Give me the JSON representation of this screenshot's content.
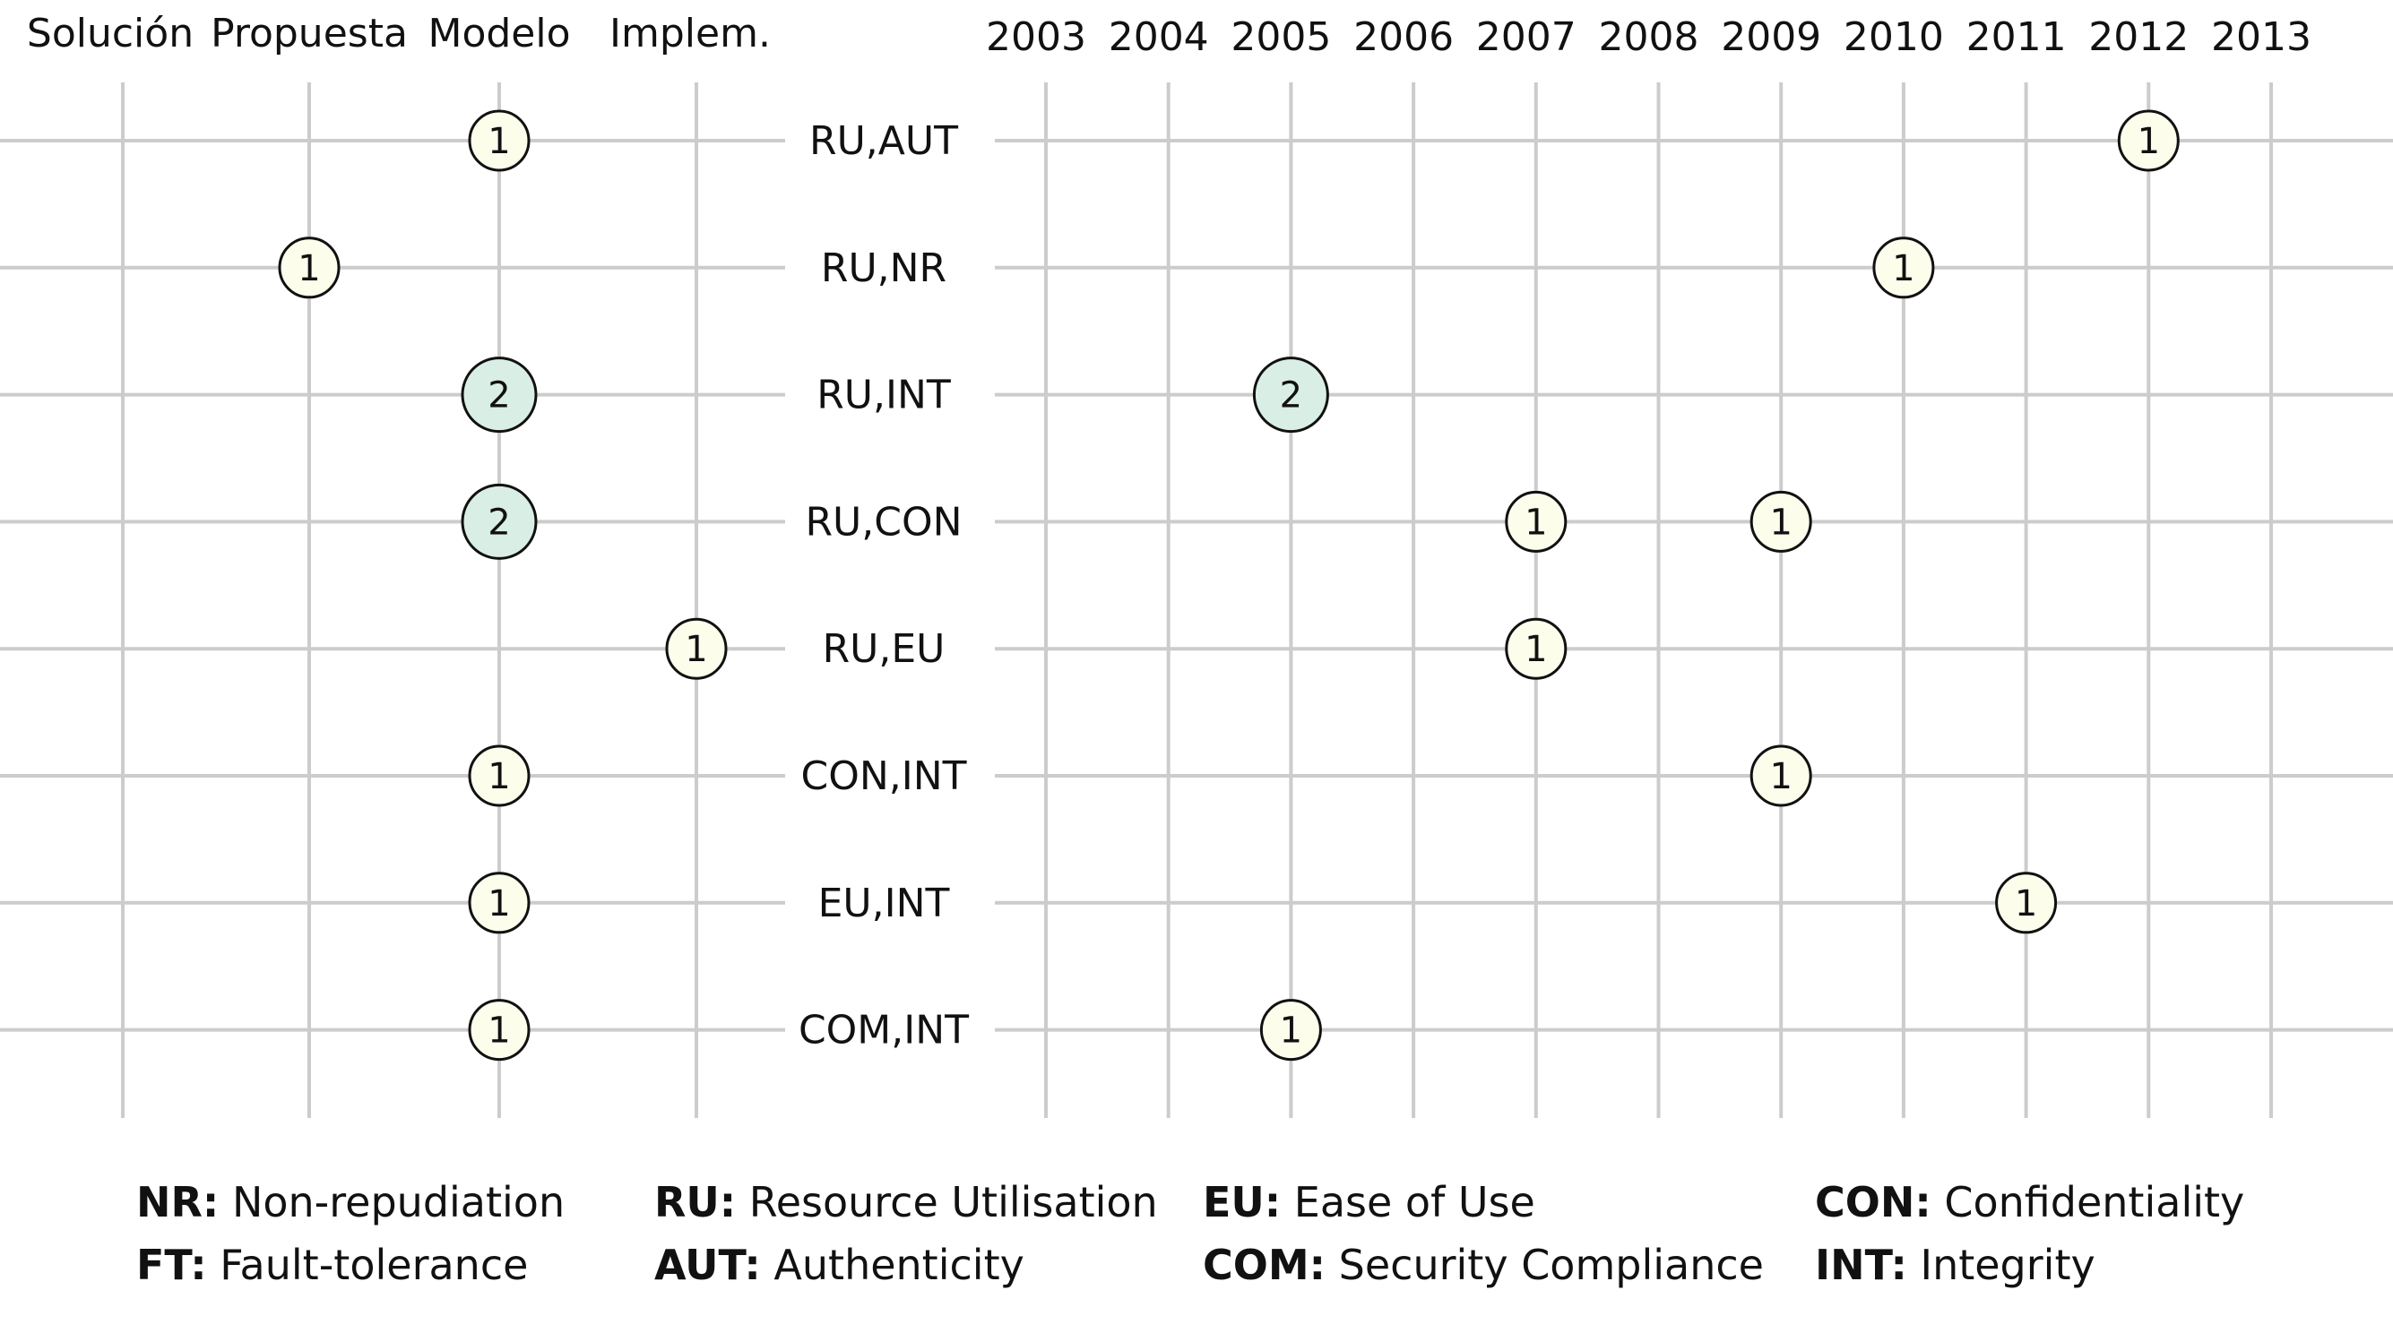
{
  "chart_data": {
    "type": "scatter",
    "left_panel": {
      "categories": [
        "Solución",
        "Propuesta",
        "Modelo",
        "Implem."
      ]
    },
    "right_panel": {
      "years": [
        "2003",
        "2004",
        "2005",
        "2006",
        "2007",
        "2008",
        "2009",
        "2010",
        "2011",
        "2012",
        "2013"
      ]
    },
    "rows": [
      "RU,AUT",
      "RU,NR",
      "RU,INT",
      "RU,CON",
      "RU,EU",
      "CON,INT",
      "EU,INT",
      "COM,INT"
    ],
    "left_points": [
      {
        "row": "RU,AUT",
        "category": "Modelo",
        "count": 1
      },
      {
        "row": "RU,NR",
        "category": "Propuesta",
        "count": 1
      },
      {
        "row": "RU,INT",
        "category": "Modelo",
        "count": 2
      },
      {
        "row": "RU,CON",
        "category": "Modelo",
        "count": 2
      },
      {
        "row": "RU,EU",
        "category": "Implem.",
        "count": 1
      },
      {
        "row": "CON,INT",
        "category": "Modelo",
        "count": 1
      },
      {
        "row": "EU,INT",
        "category": "Modelo",
        "count": 1
      },
      {
        "row": "COM,INT",
        "category": "Modelo",
        "count": 1
      }
    ],
    "right_points": [
      {
        "row": "RU,AUT",
        "year": "2012",
        "count": 1
      },
      {
        "row": "RU,NR",
        "year": "2010",
        "count": 1
      },
      {
        "row": "RU,INT",
        "year": "2005",
        "count": 2
      },
      {
        "row": "RU,CON",
        "year": "2007",
        "count": 1
      },
      {
        "row": "RU,CON",
        "year": "2009",
        "count": 1
      },
      {
        "row": "RU,EU",
        "year": "2007",
        "count": 1
      },
      {
        "row": "CON,INT",
        "year": "2009",
        "count": 1
      },
      {
        "row": "EU,INT",
        "year": "2011",
        "count": 1
      },
      {
        "row": "COM,INT",
        "year": "2005",
        "count": 1
      }
    ],
    "legend": [
      [
        {
          "abbr": "NR:",
          "text": " Non-repudiation"
        },
        {
          "abbr": "RU:",
          "text": " Resource Utilisation"
        },
        {
          "abbr": "EU:",
          "text": " Ease of Use"
        },
        {
          "abbr": "CON:",
          "text": " Confidentiality"
        }
      ],
      [
        {
          "abbr": "FT:",
          "text": " Fault-tolerance"
        },
        {
          "abbr": "AUT:",
          "text": " Authenticity"
        },
        {
          "abbr": "COM:",
          "text": " Security Compliance"
        },
        {
          "abbr": "INT:",
          "text": " Integrity"
        }
      ]
    ],
    "grid": true,
    "legend_position": "bottom"
  },
  "colors": {
    "grid": "#cccccc",
    "bubble_fill_1": "#fdfdec",
    "bubble_fill_2": "#d9eee4",
    "bubble_stroke": "#111111",
    "text": "#111111"
  }
}
